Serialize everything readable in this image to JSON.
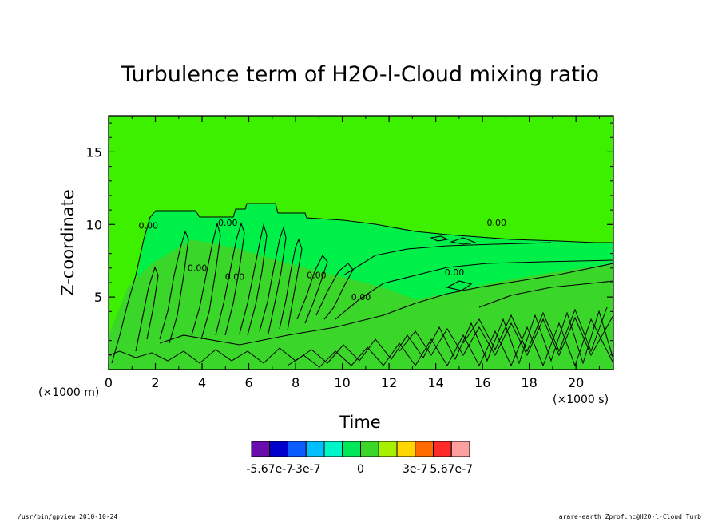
{
  "chart_data": {
    "type": "heatmap",
    "title": "Turbulence term of H2O-l-Cloud mixing ratio",
    "xlabel": "Time",
    "ylabel": "Z-coordinate",
    "x_unit": "(×1000 s)",
    "y_unit": "(×1000 m)",
    "xlim": [
      0,
      21.6
    ],
    "ylim": [
      0,
      17.5
    ],
    "x_ticks": [
      0,
      2,
      4,
      6,
      8,
      10,
      12,
      14,
      16,
      18,
      20
    ],
    "y_ticks": [
      5,
      10,
      15
    ],
    "background_value": 0,
    "contour_labels": [
      {
        "text": "0.00",
        "x": 1.7,
        "y": 9.7
      },
      {
        "text": "0.00",
        "x": 5.1,
        "y": 9.9
      },
      {
        "text": "0.00",
        "x": 16.6,
        "y": 9.9
      },
      {
        "text": "0.00",
        "x": 3.8,
        "y": 6.8
      },
      {
        "text": "0.00",
        "x": 5.4,
        "y": 6.2
      },
      {
        "text": "0.00",
        "x": 8.9,
        "y": 6.3
      },
      {
        "text": "0.00",
        "x": 14.8,
        "y": 6.5
      },
      {
        "text": "0.00",
        "x": 10.8,
        "y": 4.8
      }
    ],
    "colorbar": {
      "colors": [
        "#6a0dad",
        "#0000cd",
        "#0b5cff",
        "#00bfff",
        "#00f5c8",
        "#00e85a",
        "#3ad72a",
        "#a8ef00",
        "#ffd700",
        "#ff6a00",
        "#ff2a2a",
        "#ffa0a0"
      ],
      "tick_labels": [
        "-5.67e-7",
        "-3e-7",
        "0",
        "3e-7",
        "5.67e-7"
      ]
    }
  },
  "footer": {
    "left": "/usr/bin/gpview  2010-10-24",
    "right": "arare-earth_Zprof.nc@H2O-l-Cloud_Turb"
  },
  "colors": {
    "upper_field": "#3cf000",
    "mid_field": "#00f04a",
    "lower_field": "#3ad72a",
    "contour": "#000000"
  }
}
